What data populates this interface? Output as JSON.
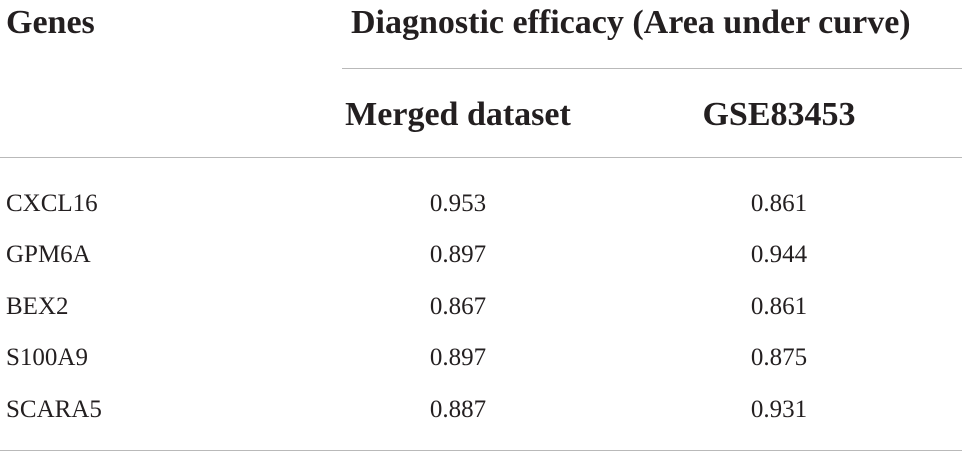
{
  "table": {
    "header": {
      "genes": "Genes",
      "group": "Diagnostic efficacy (Area under curve)",
      "col1": "Merged dataset",
      "col2": "GSE83453"
    },
    "rows": [
      {
        "gene": "CXCL16",
        "merged": "0.953",
        "gse": "0.861"
      },
      {
        "gene": "GPM6A",
        "merged": "0.897",
        "gse": "0.944"
      },
      {
        "gene": "BEX2",
        "merged": "0.867",
        "gse": "0.861"
      },
      {
        "gene": "S100A9",
        "merged": "0.897",
        "gse": "0.875"
      },
      {
        "gene": "SCARA5",
        "merged": "0.887",
        "gse": "0.931"
      }
    ]
  }
}
